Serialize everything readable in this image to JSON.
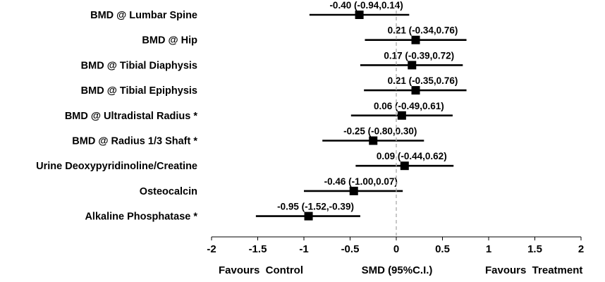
{
  "chart_data": {
    "type": "forest",
    "xlim": [
      -2,
      2
    ],
    "xticks": [
      -2,
      -1.5,
      -1,
      -0.5,
      0,
      0.5,
      1,
      1.5,
      2
    ],
    "tick_labels": [
      "-2",
      "-1.5",
      "-1",
      "-0.5",
      "0",
      "0.5",
      "1",
      "1.5",
      "2"
    ],
    "xlabel": "SMD (95%C.I.)",
    "left_caption": "Favours  Control",
    "right_caption": "Favours  Treatment",
    "reference_line": 0,
    "grid": false,
    "colors": {
      "marker": "#000000",
      "reference_line": "#aaaaaa"
    },
    "rows": [
      {
        "label": "BMD @ Lumbar Spine",
        "estimate": -0.4,
        "lower": -0.94,
        "upper": 0.14,
        "text": "-0.40 (-0.94,0.14)"
      },
      {
        "label": "BMD @ Hip",
        "estimate": 0.21,
        "lower": -0.34,
        "upper": 0.76,
        "text": "0.21 (-0.34,0.76)"
      },
      {
        "label": "BMD @ Tibial Diaphysis",
        "estimate": 0.17,
        "lower": -0.39,
        "upper": 0.72,
        "text": "0.17 (-0.39,0.72)"
      },
      {
        "label": "BMD @ Tibial Epiphysis",
        "estimate": 0.21,
        "lower": -0.35,
        "upper": 0.76,
        "text": "0.21 (-0.35,0.76)"
      },
      {
        "label": "BMD @ Ultradistal Radius *",
        "estimate": 0.06,
        "lower": -0.49,
        "upper": 0.61,
        "text": "0.06 (-0.49,0.61)"
      },
      {
        "label": "BMD @ Radius 1/3 Shaft *",
        "estimate": -0.25,
        "lower": -0.8,
        "upper": 0.3,
        "text": "-0.25 (-0.80,0.30)"
      },
      {
        "label": "Urine Deoxypyridinoline/Creatine",
        "estimate": 0.09,
        "lower": -0.44,
        "upper": 0.62,
        "text": "0.09 (-0.44,0.62)"
      },
      {
        "label": "Osteocalcin",
        "estimate": -0.46,
        "lower": -1.0,
        "upper": 0.07,
        "text": "-0.46 (-1.00,0.07)"
      },
      {
        "label": "Alkaline Phosphatase *",
        "estimate": -0.95,
        "lower": -1.52,
        "upper": -0.39,
        "text": "-0.95 (-1.52,-0.39)"
      }
    ]
  }
}
